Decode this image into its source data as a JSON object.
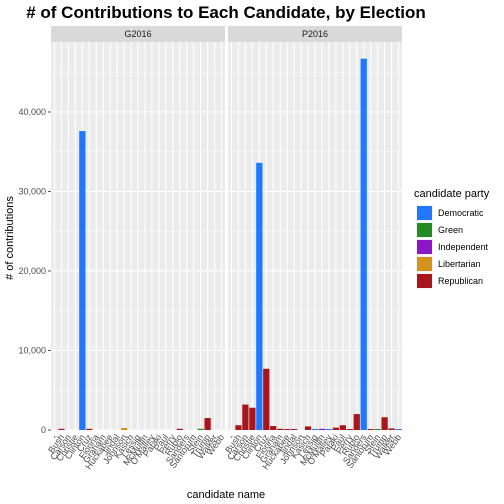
{
  "chart_data": {
    "type": "bar",
    "title": "# of Contributions to Each Candidate, by Election",
    "xlabel": "candidate name",
    "ylabel": "# of contributions",
    "ylim": [
      0,
      48800
    ],
    "yticks": [
      0,
      10000,
      20000,
      30000,
      40000
    ],
    "ytick_labels": [
      "0",
      "10,000",
      "20,000",
      "30,000",
      "40,000"
    ],
    "grid": true,
    "legend": {
      "title": "candidate party",
      "position": "right",
      "entries": [
        {
          "name": "Democratic",
          "color": "#1f78ff"
        },
        {
          "name": "Green",
          "color": "#228b22"
        },
        {
          "name": "Independent",
          "color": "#8b17c9"
        },
        {
          "name": "Libertarian",
          "color": "#d4921a"
        },
        {
          "name": "Republican",
          "color": "#a8151b"
        }
      ]
    },
    "categories": [
      "-",
      "Bush",
      "Carson",
      "Christie",
      "Clinton",
      "Cruz",
      "Fiorina",
      "Graham",
      "Huckabee",
      "Jindal",
      "Johnson",
      "Kasich",
      "Lessig",
      "McMullin",
      "O'Malley",
      "Pataki",
      "Paul",
      "Perry",
      "Rubio",
      "Sanders",
      "Santorum",
      "Stein",
      "Trump",
      "Walker",
      "Webb"
    ],
    "category_party": [
      "Republican",
      "Republican",
      "Republican",
      "Republican",
      "Democratic",
      "Republican",
      "Republican",
      "Republican",
      "Republican",
      "Republican",
      "Libertarian",
      "Republican",
      "Democratic",
      "Independent",
      "Democratic",
      "Republican",
      "Republican",
      "Republican",
      "Republican",
      "Democratic",
      "Republican",
      "Green",
      "Republican",
      "Republican",
      "Democratic"
    ],
    "panels": [
      {
        "name": "G2016",
        "values": [
          0,
          150,
          0,
          0,
          37600,
          150,
          0,
          0,
          0,
          0,
          250,
          0,
          0,
          0,
          0,
          0,
          0,
          0,
          150,
          0,
          0,
          150,
          1500,
          0,
          0
        ]
      },
      {
        "name": "P2016",
        "values": [
          0,
          600,
          3200,
          2800,
          33600,
          7700,
          500,
          150,
          50,
          50,
          0,
          450,
          50,
          150,
          100,
          300,
          600,
          50,
          2000,
          46700,
          80,
          120,
          1600,
          200,
          80
        ]
      }
    ]
  }
}
